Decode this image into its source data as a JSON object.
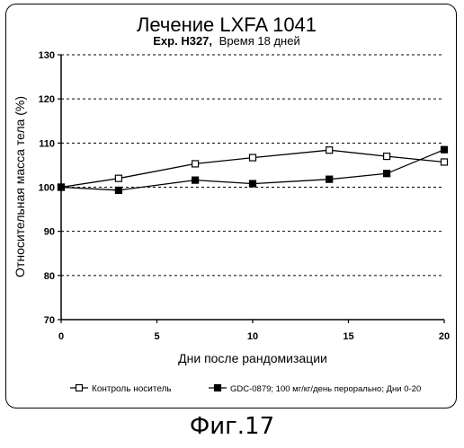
{
  "chart_data": {
    "type": "line",
    "title": "Лечение LXFA 1041",
    "subtitle_exp": "Exp. H327,",
    "subtitle_rest": "Время 18 дней",
    "xlabel": "Дни после рандомизации",
    "ylabel": "Относительная масса тела (%)",
    "xlim": [
      0,
      20
    ],
    "ylim": [
      70,
      130
    ],
    "xticks": [
      "0",
      "5",
      "10",
      "15",
      "20"
    ],
    "yticks": [
      "70",
      "80",
      "90",
      "100",
      "110",
      "120",
      "130"
    ],
    "grid": "horizontal dashed",
    "legend_position": "bottom",
    "series": [
      {
        "name": "Контроль носитель",
        "marker": "open-square",
        "x": [
          0,
          3,
          7,
          10,
          14,
          17,
          20
        ],
        "y": [
          100,
          102,
          105.3,
          106.7,
          108.4,
          107,
          105.7
        ]
      },
      {
        "name": "GDC-0879; 100 мг/кг/день перорально; Дни 0-20",
        "marker": "filled-square",
        "x": [
          0,
          3,
          7,
          10,
          14,
          17,
          20
        ],
        "y": [
          100,
          99.3,
          101.6,
          100.8,
          101.8,
          103.1,
          108.5
        ]
      }
    ]
  },
  "figure_caption": "Фиг.17"
}
